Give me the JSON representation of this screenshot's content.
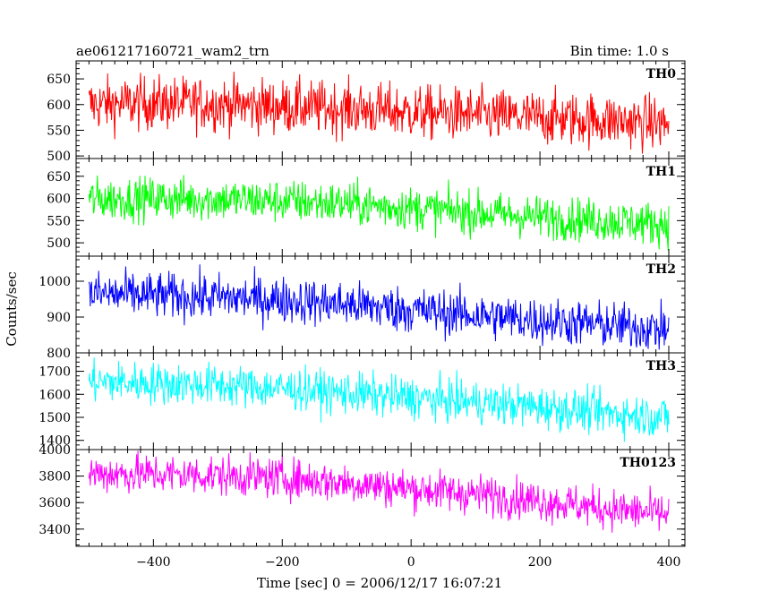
{
  "header": {
    "title": "ae061217160721_wam2_trn",
    "bin_time": "Bin time: 1.0 s"
  },
  "chart_data": {
    "type": "line",
    "title": "ae061217160721_wam2_trn",
    "subtitle": "Bin time: 1.0 s",
    "xlabel": "Time [sec] 0 = 2006/12/17 16:07:21",
    "ylabel": "Counts/sec",
    "xlim": [
      -520,
      425
    ],
    "x_ticks": [
      -400,
      -200,
      0,
      200,
      400
    ],
    "x_range_data": [
      -500,
      400
    ],
    "bin_time_s": 1.0,
    "grid": false,
    "panels": [
      {
        "name": "TH0",
        "color": "#ff0000",
        "ylim": [
          495,
          685
        ],
        "y_ticks": [
          500,
          550,
          600,
          650
        ],
        "trend": {
          "x": [
            -500,
            -400,
            -300,
            -200,
            -100,
            0,
            100,
            200,
            300,
            400
          ],
          "y": [
            600,
            603,
            601,
            596,
            592,
            585,
            580,
            574,
            570,
            562
          ]
        },
        "noise_sd": 26
      },
      {
        "name": "TH1",
        "color": "#00ff00",
        "ylim": [
          470,
          690
        ],
        "y_ticks": [
          500,
          550,
          600,
          650
        ],
        "trend": {
          "x": [
            -500,
            -400,
            -300,
            -200,
            -100,
            0,
            100,
            200,
            300,
            400
          ],
          "y": [
            598,
            600,
            598,
            594,
            588,
            578,
            568,
            558,
            550,
            542
          ]
        },
        "noise_sd": 24
      },
      {
        "name": "TH2",
        "color": "#0000ff",
        "ylim": [
          800,
          1070
        ],
        "y_ticks": [
          800,
          900,
          1000
        ],
        "trend": {
          "x": [
            -500,
            -400,
            -300,
            -200,
            -100,
            0,
            100,
            200,
            300,
            400
          ],
          "y": [
            965,
            960,
            955,
            948,
            935,
            920,
            905,
            890,
            878,
            865
          ]
        },
        "noise_sd": 32
      },
      {
        "name": "TH3",
        "color": "#00ffff",
        "ylim": [
          1360,
          1780
        ],
        "y_ticks": [
          1400,
          1500,
          1600,
          1700
        ],
        "trend": {
          "x": [
            -500,
            -400,
            -300,
            -200,
            -100,
            0,
            100,
            200,
            300,
            400
          ],
          "y": [
            1655,
            1648,
            1640,
            1625,
            1605,
            1585,
            1565,
            1545,
            1520,
            1500
          ]
        },
        "noise_sd": 45
      },
      {
        "name": "TH0123",
        "color": "#ff00ff",
        "ylim": [
          3270,
          4000
        ],
        "y_ticks": [
          3400,
          3600,
          3800,
          4000
        ],
        "trend": {
          "x": [
            -500,
            -400,
            -300,
            -200,
            -100,
            0,
            100,
            200,
            300,
            400
          ],
          "y": [
            3820,
            3815,
            3805,
            3785,
            3750,
            3705,
            3665,
            3615,
            3555,
            3510
          ]
        },
        "noise_sd": 75
      }
    ]
  }
}
